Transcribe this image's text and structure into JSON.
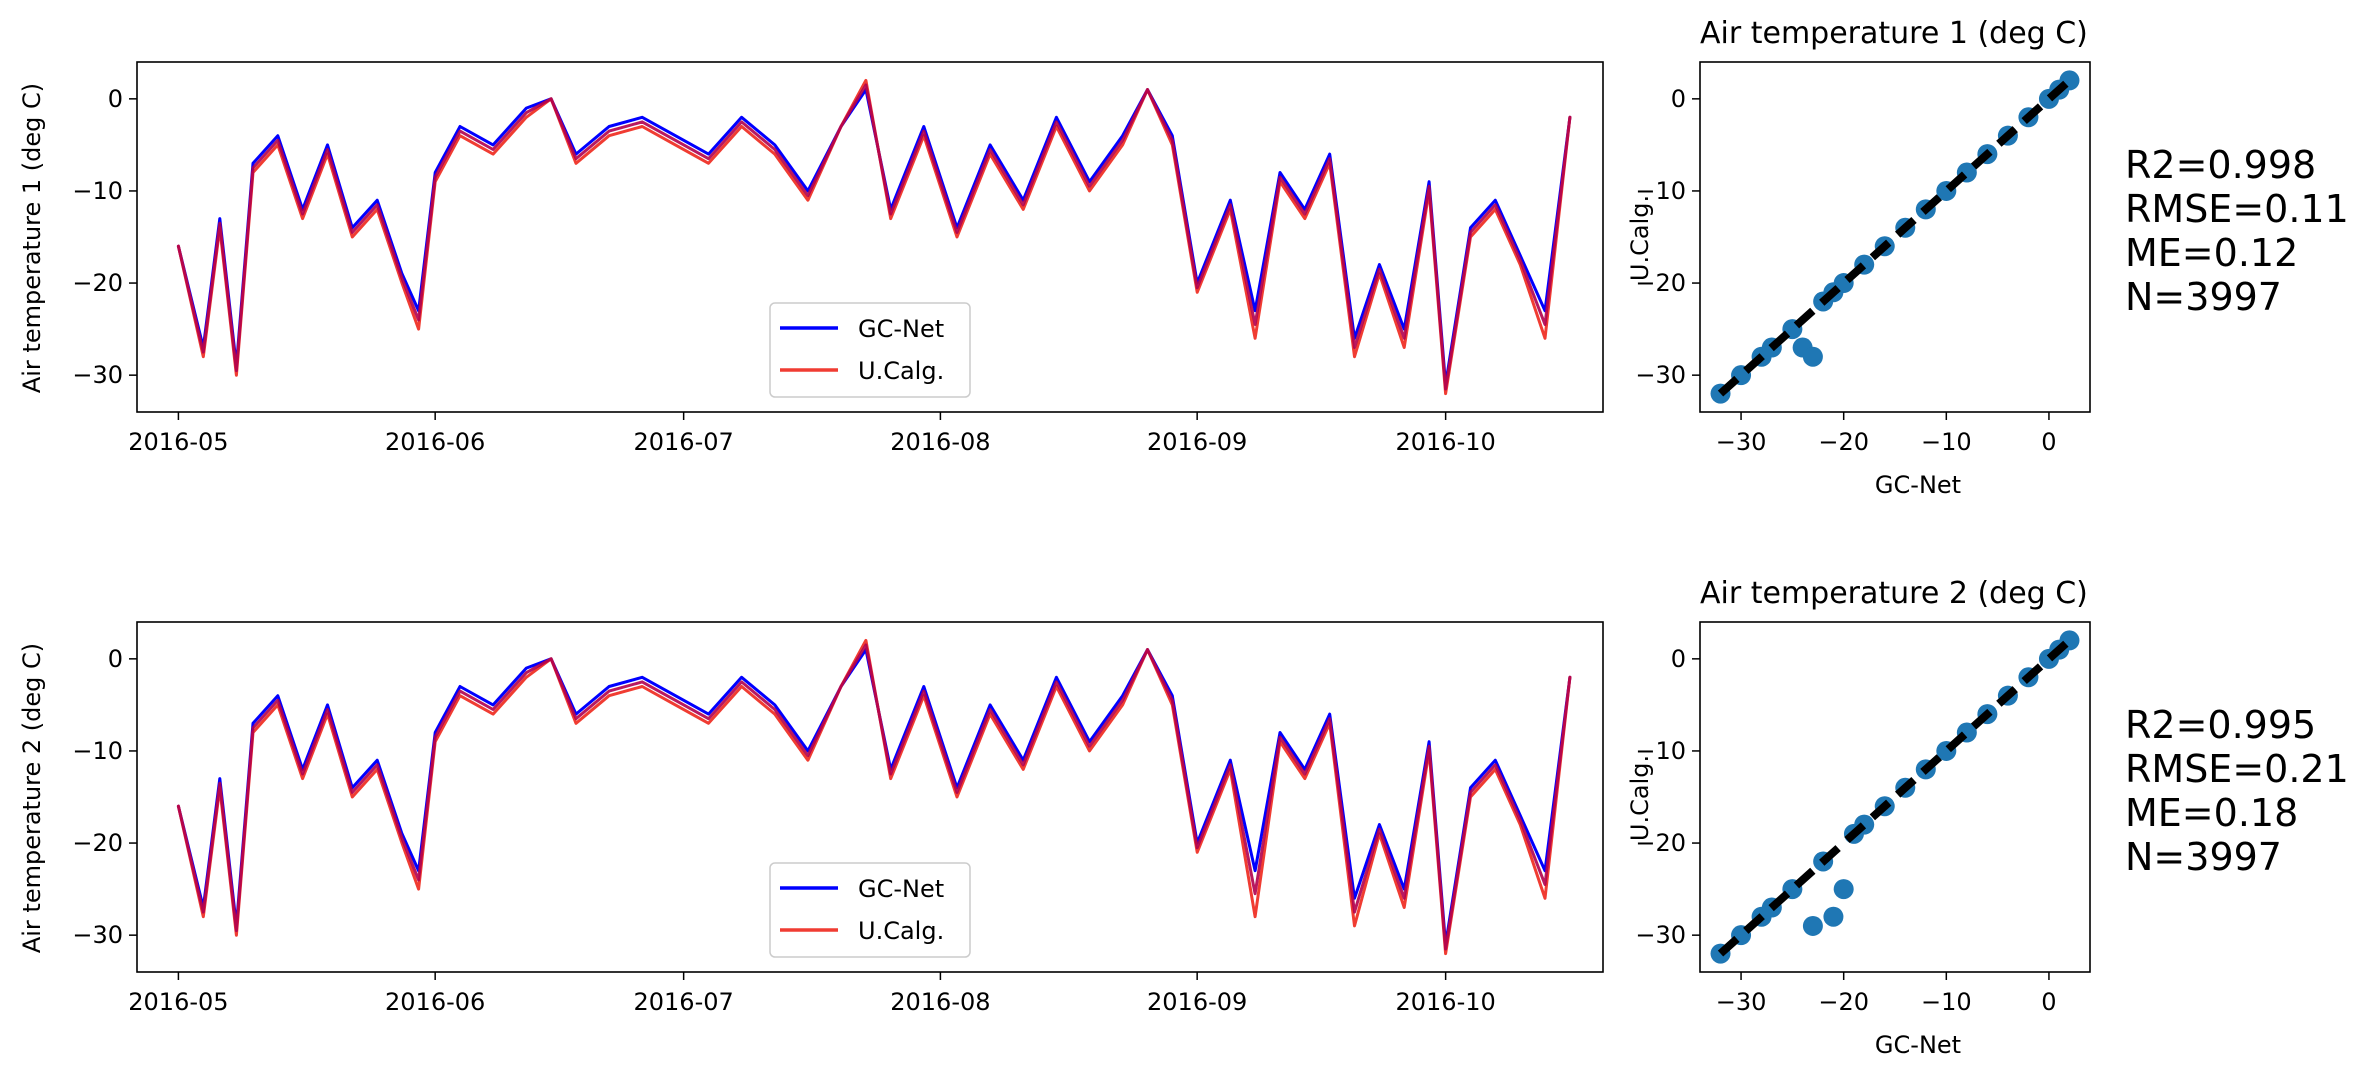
{
  "chart_data": [
    {
      "type": "line",
      "ylabel": "Air temperature 1 (deg C)",
      "xlabel": "",
      "xlim": [
        "2016-04-26",
        "2016-10-20"
      ],
      "ylim": [
        -34,
        4
      ],
      "xticks": [
        "2016-05-01",
        "2016-06-01",
        "2016-07-01",
        "2016-08-01",
        "2016-09-01",
        "2016-10-01"
      ],
      "xtick_labels": [
        "2016-05",
        "2016-06",
        "2016-07",
        "2016-08",
        "2016-09",
        "2016-10"
      ],
      "yticks": [
        0,
        -10,
        -20,
        -30
      ],
      "ytick_labels": [
        "0",
        "−10",
        "−20",
        "−30"
      ],
      "legend": "lower-center",
      "grid": false,
      "colors": {
        "GC-Net": "#0000ff",
        "U.Calg.": "#f03c32",
        "overlap": "#b0004e"
      },
      "x": [
        "2016-05-01",
        "2016-05-04",
        "2016-05-06",
        "2016-05-08",
        "2016-05-10",
        "2016-05-13",
        "2016-05-16",
        "2016-05-19",
        "2016-05-22",
        "2016-05-25",
        "2016-05-28",
        "2016-05-30",
        "2016-06-01",
        "2016-06-04",
        "2016-06-08",
        "2016-06-12",
        "2016-06-15",
        "2016-06-18",
        "2016-06-22",
        "2016-06-26",
        "2016-06-30",
        "2016-07-04",
        "2016-07-08",
        "2016-07-12",
        "2016-07-16",
        "2016-07-20",
        "2016-07-23",
        "2016-07-26",
        "2016-07-30",
        "2016-08-03",
        "2016-08-07",
        "2016-08-11",
        "2016-08-15",
        "2016-08-19",
        "2016-08-23",
        "2016-08-26",
        "2016-08-29",
        "2016-09-01",
        "2016-09-05",
        "2016-09-08",
        "2016-09-11",
        "2016-09-14",
        "2016-09-17",
        "2016-09-20",
        "2016-09-23",
        "2016-09-26",
        "2016-09-29",
        "2016-10-01",
        "2016-10-04",
        "2016-10-07",
        "2016-10-10",
        "2016-10-13",
        "2016-10-16"
      ],
      "series": [
        {
          "name": "GC-Net",
          "values": [
            -16,
            -27,
            -13,
            -29,
            -7,
            -4,
            -12,
            -5,
            -14,
            -11,
            -19,
            -23,
            -8,
            -3,
            -5,
            -1,
            0,
            -6,
            -3,
            -2,
            -4,
            -6,
            -2,
            -5,
            -10,
            -3,
            1,
            -12,
            -3,
            -14,
            -5,
            -11,
            -2,
            -9,
            -4,
            1,
            -4,
            -20,
            -11,
            -23,
            -8,
            -12,
            -6,
            -26,
            -18,
            -25,
            -9,
            -31,
            -14,
            -11,
            -17,
            -23,
            -2
          ]
        },
        {
          "name": "U.Calg.",
          "values": [
            -16,
            -28,
            -14,
            -30,
            -8,
            -5,
            -13,
            -6,
            -15,
            -12,
            -20,
            -25,
            -9,
            -4,
            -6,
            -2,
            0,
            -7,
            -4,
            -3,
            -5,
            -7,
            -3,
            -6,
            -11,
            -3,
            2,
            -13,
            -4,
            -15,
            -6,
            -12,
            -3,
            -10,
            -5,
            1,
            -5,
            -21,
            -12,
            -26,
            -9,
            -13,
            -7,
            -28,
            -19,
            -27,
            -10,
            -32,
            -15,
            -12,
            -18,
            -26,
            -2
          ]
        }
      ]
    },
    {
      "type": "scatter",
      "title": "Air temperature 1 (deg C)",
      "xlabel": "GC-Net",
      "ylabel": "U.Calg.",
      "xlim": [
        -34,
        4
      ],
      "ylim": [
        -34,
        4
      ],
      "xticks": [
        -30,
        -20,
        -10,
        0
      ],
      "xtick_labels": [
        "−30",
        "−20",
        "−10",
        "0"
      ],
      "yticks": [
        0,
        -10,
        -20,
        -30
      ],
      "ytick_labels": [
        "0",
        "−10",
        "−20",
        "−30"
      ],
      "colors": {
        "points": "#1f77b4",
        "fit_line": "#000000"
      },
      "x": [
        -32,
        -30,
        -28,
        -27,
        -25,
        -24,
        -23,
        -22,
        -21,
        -20,
        -18,
        -16,
        -14,
        -12,
        -10,
        -8,
        -6,
        -4,
        -2,
        0,
        1,
        2
      ],
      "y": [
        -32,
        -30,
        -28,
        -27,
        -25,
        -27,
        -28,
        -22,
        -21,
        -20,
        -18,
        -16,
        -14,
        -12,
        -10,
        -8,
        -6,
        -4,
        -2,
        0,
        1,
        2
      ],
      "fit_line": [
        [
          -32,
          -32
        ],
        [
          2,
          2
        ]
      ],
      "stats": [
        "R2=0.998",
        "RMSE=0.11",
        "ME=0.12",
        "N=3997"
      ]
    },
    {
      "type": "line",
      "ylabel": "Air temperature 2 (deg C)",
      "xlabel": "",
      "xlim": [
        "2016-04-26",
        "2016-10-20"
      ],
      "ylim": [
        -34,
        4
      ],
      "xticks": [
        "2016-05-01",
        "2016-06-01",
        "2016-07-01",
        "2016-08-01",
        "2016-09-01",
        "2016-10-01"
      ],
      "xtick_labels": [
        "2016-05",
        "2016-06",
        "2016-07",
        "2016-08",
        "2016-09",
        "2016-10"
      ],
      "yticks": [
        0,
        -10,
        -20,
        -30
      ],
      "ytick_labels": [
        "0",
        "−10",
        "−20",
        "−30"
      ],
      "legend": "lower-center",
      "grid": false,
      "colors": {
        "GC-Net": "#0000ff",
        "U.Calg.": "#f03c32",
        "overlap": "#b0004e"
      },
      "x": [
        "2016-05-01",
        "2016-05-04",
        "2016-05-06",
        "2016-05-08",
        "2016-05-10",
        "2016-05-13",
        "2016-05-16",
        "2016-05-19",
        "2016-05-22",
        "2016-05-25",
        "2016-05-28",
        "2016-05-30",
        "2016-06-01",
        "2016-06-04",
        "2016-06-08",
        "2016-06-12",
        "2016-06-15",
        "2016-06-18",
        "2016-06-22",
        "2016-06-26",
        "2016-06-30",
        "2016-07-04",
        "2016-07-08",
        "2016-07-12",
        "2016-07-16",
        "2016-07-20",
        "2016-07-23",
        "2016-07-26",
        "2016-07-30",
        "2016-08-03",
        "2016-08-07",
        "2016-08-11",
        "2016-08-15",
        "2016-08-19",
        "2016-08-23",
        "2016-08-26",
        "2016-08-29",
        "2016-09-01",
        "2016-09-05",
        "2016-09-08",
        "2016-09-11",
        "2016-09-14",
        "2016-09-17",
        "2016-09-20",
        "2016-09-23",
        "2016-09-26",
        "2016-09-29",
        "2016-10-01",
        "2016-10-04",
        "2016-10-07",
        "2016-10-10",
        "2016-10-13",
        "2016-10-16"
      ],
      "series": [
        {
          "name": "GC-Net",
          "values": [
            -16,
            -27,
            -13,
            -29,
            -7,
            -4,
            -12,
            -5,
            -14,
            -11,
            -19,
            -23,
            -8,
            -3,
            -5,
            -1,
            0,
            -6,
            -3,
            -2,
            -4,
            -6,
            -2,
            -5,
            -10,
            -3,
            1,
            -12,
            -3,
            -14,
            -5,
            -11,
            -2,
            -9,
            -4,
            1,
            -4,
            -20,
            -11,
            -23,
            -8,
            -12,
            -6,
            -26,
            -18,
            -25,
            -9,
            -31,
            -14,
            -11,
            -17,
            -23,
            -2
          ]
        },
        {
          "name": "U.Calg.",
          "values": [
            -16,
            -28,
            -14,
            -30,
            -8,
            -5,
            -13,
            -6,
            -15,
            -12,
            -20,
            -25,
            -9,
            -4,
            -6,
            -2,
            0,
            -7,
            -4,
            -3,
            -5,
            -7,
            -3,
            -6,
            -11,
            -3,
            2,
            -13,
            -4,
            -15,
            -6,
            -12,
            -3,
            -10,
            -5,
            1,
            -5,
            -21,
            -12,
            -28,
            -9,
            -13,
            -7,
            -29,
            -19,
            -27,
            -10,
            -32,
            -15,
            -12,
            -18,
            -26,
            -2
          ]
        }
      ]
    },
    {
      "type": "scatter",
      "title": "Air temperature 2 (deg C)",
      "xlabel": "GC-Net",
      "ylabel": "U.Calg.",
      "xlim": [
        -34,
        4
      ],
      "ylim": [
        -34,
        4
      ],
      "xticks": [
        -30,
        -20,
        -10,
        0
      ],
      "xtick_labels": [
        "−30",
        "−20",
        "−10",
        "0"
      ],
      "yticks": [
        0,
        -10,
        -20,
        -30
      ],
      "ytick_labels": [
        "0",
        "−10",
        "−20",
        "−30"
      ],
      "colors": {
        "points": "#1f77b4",
        "fit_line": "#000000"
      },
      "x": [
        -32,
        -30,
        -28,
        -27,
        -25,
        -23,
        -22,
        -21,
        -20,
        -19,
        -18,
        -16,
        -14,
        -12,
        -10,
        -8,
        -6,
        -4,
        -2,
        0,
        1,
        2
      ],
      "y": [
        -32,
        -30,
        -28,
        -27,
        -25,
        -29,
        -22,
        -28,
        -25,
        -19,
        -18,
        -16,
        -14,
        -12,
        -10,
        -8,
        -6,
        -4,
        -2,
        0,
        1,
        2
      ],
      "fit_line": [
        [
          -32,
          -32
        ],
        [
          2,
          2
        ]
      ],
      "stats": [
        "R2=0.995",
        "RMSE=0.21",
        "ME=0.18",
        "N=3997"
      ]
    }
  ]
}
